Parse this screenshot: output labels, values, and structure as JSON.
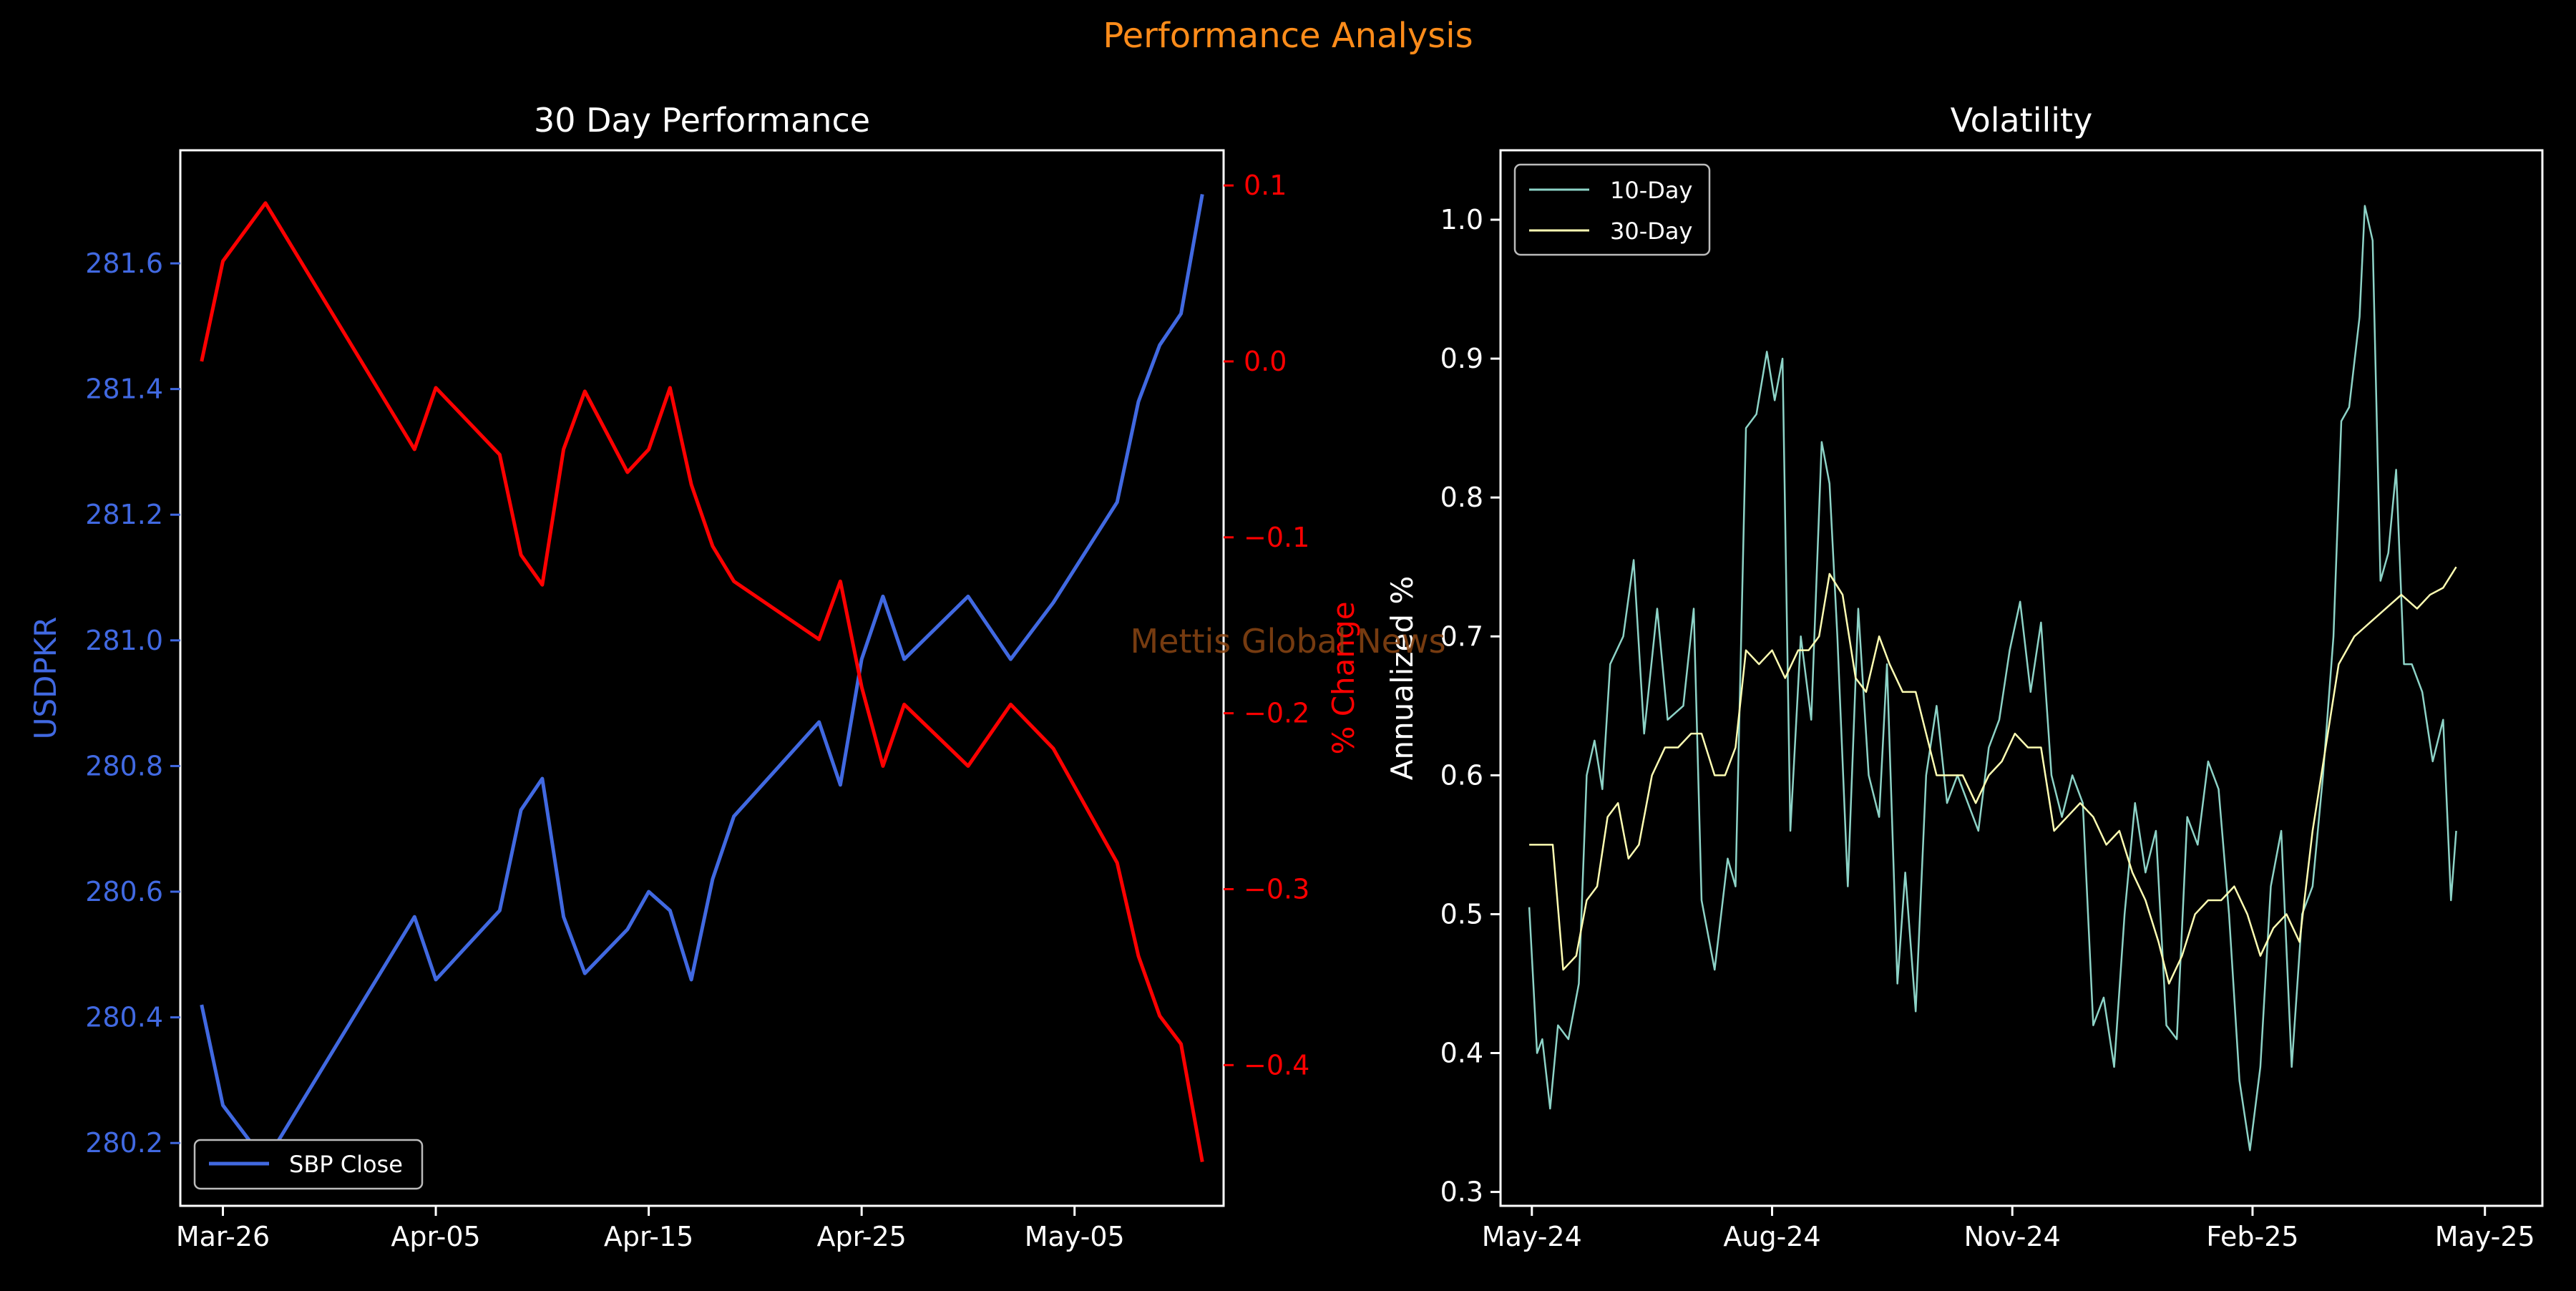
{
  "suptitle": "Performance Analysis",
  "watermark": "Mettis Global News",
  "colors": {
    "background": "#000000",
    "suptitle": "#ff8c1a",
    "usdpkr_line": "#4169e1",
    "pct_change_line": "#ff0000",
    "vol10": "#8dd3c7",
    "vol30": "#ffffb3",
    "watermark": "#8b4513"
  },
  "chart_data": [
    {
      "type": "line",
      "title": "30 Day Performance",
      "xlabel": "",
      "x_ticks": [
        "Mar-26",
        "Apr-05",
        "Apr-15",
        "Apr-25",
        "May-05"
      ],
      "x_tick_dates": [
        "2025-03-26",
        "2025-04-05",
        "2025-04-15",
        "2025-04-25",
        "2025-05-05"
      ],
      "xlim": [
        "2025-03-24",
        "2025-05-12"
      ],
      "ylabel_left": "USDPKR",
      "ylim_left": [
        280.1,
        281.78
      ],
      "yticks_left": [
        280.2,
        280.4,
        280.6,
        280.8,
        281.0,
        281.2,
        281.4,
        281.6
      ],
      "ylabel_right": "% Change",
      "ylim_right": [
        -0.48,
        0.12
      ],
      "yticks_right": [
        0.1,
        0.0,
        -0.1,
        -0.2,
        -0.3,
        -0.4
      ],
      "legend": {
        "placement": "lower-left",
        "entries": [
          "SBP Close"
        ]
      },
      "series": [
        {
          "name": "SBP Close",
          "axis": "left",
          "points": [
            [
              "2025-03-25",
              280.42
            ],
            [
              "2025-03-26",
              280.26
            ],
            [
              "2025-03-28",
              280.17
            ],
            [
              "2025-04-04",
              280.56
            ],
            [
              "2025-04-05",
              280.46
            ],
            [
              "2025-04-08",
              280.57
            ],
            [
              "2025-04-09",
              280.73
            ],
            [
              "2025-04-10",
              280.78
            ],
            [
              "2025-04-11",
              280.56
            ],
            [
              "2025-04-12",
              280.47
            ],
            [
              "2025-04-14",
              280.54
            ],
            [
              "2025-04-15",
              280.6
            ],
            [
              "2025-04-16",
              280.57
            ],
            [
              "2025-04-17",
              280.46
            ],
            [
              "2025-04-18",
              280.62
            ],
            [
              "2025-04-19",
              280.72
            ],
            [
              "2025-04-23",
              280.87
            ],
            [
              "2025-04-24",
              280.77
            ],
            [
              "2025-04-25",
              280.97
            ],
            [
              "2025-04-26",
              281.07
            ],
            [
              "2025-04-27",
              280.97
            ],
            [
              "2025-04-30",
              281.07
            ],
            [
              "2025-05-02",
              280.97
            ],
            [
              "2025-05-04",
              281.06
            ],
            [
              "2025-05-07",
              281.22
            ],
            [
              "2025-05-08",
              281.38
            ],
            [
              "2025-05-09",
              281.47
            ],
            [
              "2025-05-10",
              281.52
            ],
            [
              "2025-05-11",
              281.71
            ]
          ]
        },
        {
          "name": "% Change",
          "axis": "right",
          "points": [
            [
              "2025-03-25",
              0.0
            ],
            [
              "2025-03-26",
              0.057
            ],
            [
              "2025-03-28",
              0.09
            ],
            [
              "2025-04-04",
              -0.05
            ],
            [
              "2025-04-05",
              -0.015
            ],
            [
              "2025-04-08",
              -0.053
            ],
            [
              "2025-04-09",
              -0.11
            ],
            [
              "2025-04-10",
              -0.127
            ],
            [
              "2025-04-11",
              -0.05
            ],
            [
              "2025-04-12",
              -0.017
            ],
            [
              "2025-04-14",
              -0.063
            ],
            [
              "2025-04-15",
              -0.05
            ],
            [
              "2025-04-16",
              -0.015
            ],
            [
              "2025-04-17",
              -0.07
            ],
            [
              "2025-04-18",
              -0.105
            ],
            [
              "2025-04-19",
              -0.125
            ],
            [
              "2025-04-23",
              -0.158
            ],
            [
              "2025-04-24",
              -0.125
            ],
            [
              "2025-04-25",
              -0.185
            ],
            [
              "2025-04-26",
              -0.23
            ],
            [
              "2025-04-27",
              -0.195
            ],
            [
              "2025-04-30",
              -0.23
            ],
            [
              "2025-05-02",
              -0.195
            ],
            [
              "2025-05-04",
              -0.22
            ],
            [
              "2025-05-07",
              -0.285
            ],
            [
              "2025-05-08",
              -0.338
            ],
            [
              "2025-05-09",
              -0.372
            ],
            [
              "2025-05-10",
              -0.388
            ],
            [
              "2025-05-11",
              -0.455
            ]
          ]
        }
      ]
    },
    {
      "type": "line",
      "title": "Volatility",
      "xlabel": "",
      "x_ticks": [
        "May-24",
        "Aug-24",
        "Nov-24",
        "Feb-25",
        "May-25"
      ],
      "x_tick_dates": [
        "2024-05-01",
        "2024-08-01",
        "2024-11-01",
        "2025-02-01",
        "2025-05-01"
      ],
      "xlim": [
        "2024-04-19",
        "2025-05-23"
      ],
      "ylabel": "Annualized %",
      "ylim": [
        0.29,
        1.05
      ],
      "yticks": [
        0.3,
        0.4,
        0.5,
        0.6,
        0.7,
        0.8,
        0.9,
        1.0
      ],
      "legend": {
        "placement": "upper-left",
        "entries": [
          "10-Day",
          "30-Day"
        ]
      },
      "series": [
        {
          "name": "10-Day",
          "points": [
            [
              "2024-04-30",
              0.505
            ],
            [
              "2024-05-03",
              0.4
            ],
            [
              "2024-05-05",
              0.41
            ],
            [
              "2024-05-08",
              0.36
            ],
            [
              "2024-05-11",
              0.42
            ],
            [
              "2024-05-15",
              0.41
            ],
            [
              "2024-05-19",
              0.45
            ],
            [
              "2024-05-22",
              0.6
            ],
            [
              "2024-05-25",
              0.625
            ],
            [
              "2024-05-28",
              0.59
            ],
            [
              "2024-05-31",
              0.68
            ],
            [
              "2024-06-05",
              0.7
            ],
            [
              "2024-06-09",
              0.755
            ],
            [
              "2024-06-13",
              0.63
            ],
            [
              "2024-06-18",
              0.72
            ],
            [
              "2024-06-22",
              0.64
            ],
            [
              "2024-06-28",
              0.65
            ],
            [
              "2024-07-02",
              0.72
            ],
            [
              "2024-07-05",
              0.51
            ],
            [
              "2024-07-10",
              0.46
            ],
            [
              "2024-07-15",
              0.54
            ],
            [
              "2024-07-18",
              0.52
            ],
            [
              "2024-07-22",
              0.85
            ],
            [
              "2024-07-26",
              0.86
            ],
            [
              "2024-07-30",
              0.905
            ],
            [
              "2024-08-02",
              0.87
            ],
            [
              "2024-08-05",
              0.9
            ],
            [
              "2024-08-08",
              0.56
            ],
            [
              "2024-08-12",
              0.7
            ],
            [
              "2024-08-16",
              0.64
            ],
            [
              "2024-08-20",
              0.84
            ],
            [
              "2024-08-23",
              0.81
            ],
            [
              "2024-08-26",
              0.7
            ],
            [
              "2024-08-30",
              0.52
            ],
            [
              "2024-09-03",
              0.72
            ],
            [
              "2024-09-07",
              0.6
            ],
            [
              "2024-09-11",
              0.57
            ],
            [
              "2024-09-14",
              0.68
            ],
            [
              "2024-09-18",
              0.45
            ],
            [
              "2024-09-21",
              0.53
            ],
            [
              "2024-09-25",
              0.43
            ],
            [
              "2024-09-29",
              0.6
            ],
            [
              "2024-10-03",
              0.65
            ],
            [
              "2024-10-07",
              0.58
            ],
            [
              "2024-10-11",
              0.6
            ],
            [
              "2024-10-15",
              0.58
            ],
            [
              "2024-10-19",
              0.56
            ],
            [
              "2024-10-23",
              0.62
            ],
            [
              "2024-10-27",
              0.64
            ],
            [
              "2024-10-31",
              0.69
            ],
            [
              "2024-11-04",
              0.725
            ],
            [
              "2024-11-08",
              0.66
            ],
            [
              "2024-11-12",
              0.71
            ],
            [
              "2024-11-16",
              0.6
            ],
            [
              "2024-11-20",
              0.57
            ],
            [
              "2024-11-24",
              0.6
            ],
            [
              "2024-11-28",
              0.58
            ],
            [
              "2024-12-02",
              0.42
            ],
            [
              "2024-12-06",
              0.44
            ],
            [
              "2024-12-10",
              0.39
            ],
            [
              "2024-12-14",
              0.5
            ],
            [
              "2024-12-18",
              0.58
            ],
            [
              "2024-12-22",
              0.53
            ],
            [
              "2024-12-26",
              0.56
            ],
            [
              "2024-12-30",
              0.42
            ],
            [
              "2025-01-03",
              0.41
            ],
            [
              "2025-01-07",
              0.57
            ],
            [
              "2025-01-11",
              0.55
            ],
            [
              "2025-01-15",
              0.61
            ],
            [
              "2025-01-19",
              0.59
            ],
            [
              "2025-01-23",
              0.5
            ],
            [
              "2025-01-27",
              0.38
            ],
            [
              "2025-01-31",
              0.33
            ],
            [
              "2025-02-04",
              0.39
            ],
            [
              "2025-02-08",
              0.52
            ],
            [
              "2025-02-12",
              0.56
            ],
            [
              "2025-02-16",
              0.39
            ],
            [
              "2025-02-20",
              0.5
            ],
            [
              "2025-02-24",
              0.52
            ],
            [
              "2025-02-28",
              0.6
            ],
            [
              "2025-03-04",
              0.7
            ],
            [
              "2025-03-07",
              0.855
            ],
            [
              "2025-03-10",
              0.865
            ],
            [
              "2025-03-14",
              0.93
            ],
            [
              "2025-03-16",
              1.01
            ],
            [
              "2025-03-19",
              0.985
            ],
            [
              "2025-03-22",
              0.74
            ],
            [
              "2025-03-25",
              0.76
            ],
            [
              "2025-03-28",
              0.82
            ],
            [
              "2025-03-31",
              0.68
            ],
            [
              "2025-04-03",
              0.68
            ],
            [
              "2025-04-07",
              0.66
            ],
            [
              "2025-04-11",
              0.61
            ],
            [
              "2025-04-15",
              0.64
            ],
            [
              "2025-04-18",
              0.51
            ],
            [
              "2025-04-20",
              0.56
            ]
          ]
        },
        {
          "name": "30-Day",
          "points": [
            [
              "2024-04-30",
              0.55
            ],
            [
              "2024-05-05",
              0.55
            ],
            [
              "2024-05-09",
              0.55
            ],
            [
              "2024-05-13",
              0.46
            ],
            [
              "2024-05-18",
              0.47
            ],
            [
              "2024-05-22",
              0.51
            ],
            [
              "2024-05-26",
              0.52
            ],
            [
              "2024-05-30",
              0.57
            ],
            [
              "2024-06-03",
              0.58
            ],
            [
              "2024-06-07",
              0.54
            ],
            [
              "2024-06-11",
              0.55
            ],
            [
              "2024-06-16",
              0.6
            ],
            [
              "2024-06-21",
              0.62
            ],
            [
              "2024-06-26",
              0.62
            ],
            [
              "2024-07-01",
              0.63
            ],
            [
              "2024-07-05",
              0.63
            ],
            [
              "2024-07-10",
              0.6
            ],
            [
              "2024-07-14",
              0.6
            ],
            [
              "2024-07-18",
              0.62
            ],
            [
              "2024-07-22",
              0.69
            ],
            [
              "2024-07-27",
              0.68
            ],
            [
              "2024-08-01",
              0.69
            ],
            [
              "2024-08-06",
              0.67
            ],
            [
              "2024-08-11",
              0.69
            ],
            [
              "2024-08-15",
              0.69
            ],
            [
              "2024-08-19",
              0.7
            ],
            [
              "2024-08-23",
              0.745
            ],
            [
              "2024-08-28",
              0.73
            ],
            [
              "2024-09-02",
              0.67
            ],
            [
              "2024-09-06",
              0.66
            ],
            [
              "2024-09-11",
              0.7
            ],
            [
              "2024-09-15",
              0.68
            ],
            [
              "2024-09-20",
              0.66
            ],
            [
              "2024-09-25",
              0.66
            ],
            [
              "2024-09-29",
              0.63
            ],
            [
              "2024-10-03",
              0.6
            ],
            [
              "2024-10-08",
              0.6
            ],
            [
              "2024-10-13",
              0.6
            ],
            [
              "2024-10-18",
              0.58
            ],
            [
              "2024-10-23",
              0.6
            ],
            [
              "2024-10-28",
              0.61
            ],
            [
              "2024-11-02",
              0.63
            ],
            [
              "2024-11-07",
              0.62
            ],
            [
              "2024-11-12",
              0.62
            ],
            [
              "2024-11-17",
              0.56
            ],
            [
              "2024-11-22",
              0.57
            ],
            [
              "2024-11-27",
              0.58
            ],
            [
              "2024-12-02",
              0.57
            ],
            [
              "2024-12-07",
              0.55
            ],
            [
              "2024-12-12",
              0.56
            ],
            [
              "2024-12-17",
              0.53
            ],
            [
              "2024-12-22",
              0.51
            ],
            [
              "2024-12-27",
              0.48
            ],
            [
              "2024-12-31",
              0.45
            ],
            [
              "2025-01-05",
              0.47
            ],
            [
              "2025-01-10",
              0.5
            ],
            [
              "2025-01-15",
              0.51
            ],
            [
              "2025-01-20",
              0.51
            ],
            [
              "2025-01-25",
              0.52
            ],
            [
              "2025-01-30",
              0.5
            ],
            [
              "2025-02-04",
              0.47
            ],
            [
              "2025-02-09",
              0.49
            ],
            [
              "2025-02-14",
              0.5
            ],
            [
              "2025-02-19",
              0.48
            ],
            [
              "2025-02-24",
              0.56
            ],
            [
              "2025-03-01",
              0.62
            ],
            [
              "2025-03-06",
              0.68
            ],
            [
              "2025-03-12",
              0.7
            ],
            [
              "2025-03-18",
              0.71
            ],
            [
              "2025-03-24",
              0.72
            ],
            [
              "2025-03-30",
              0.73
            ],
            [
              "2025-04-05",
              0.72
            ],
            [
              "2025-04-10",
              0.73
            ],
            [
              "2025-04-15",
              0.735
            ],
            [
              "2025-04-20",
              0.75
            ]
          ]
        }
      ]
    }
  ]
}
